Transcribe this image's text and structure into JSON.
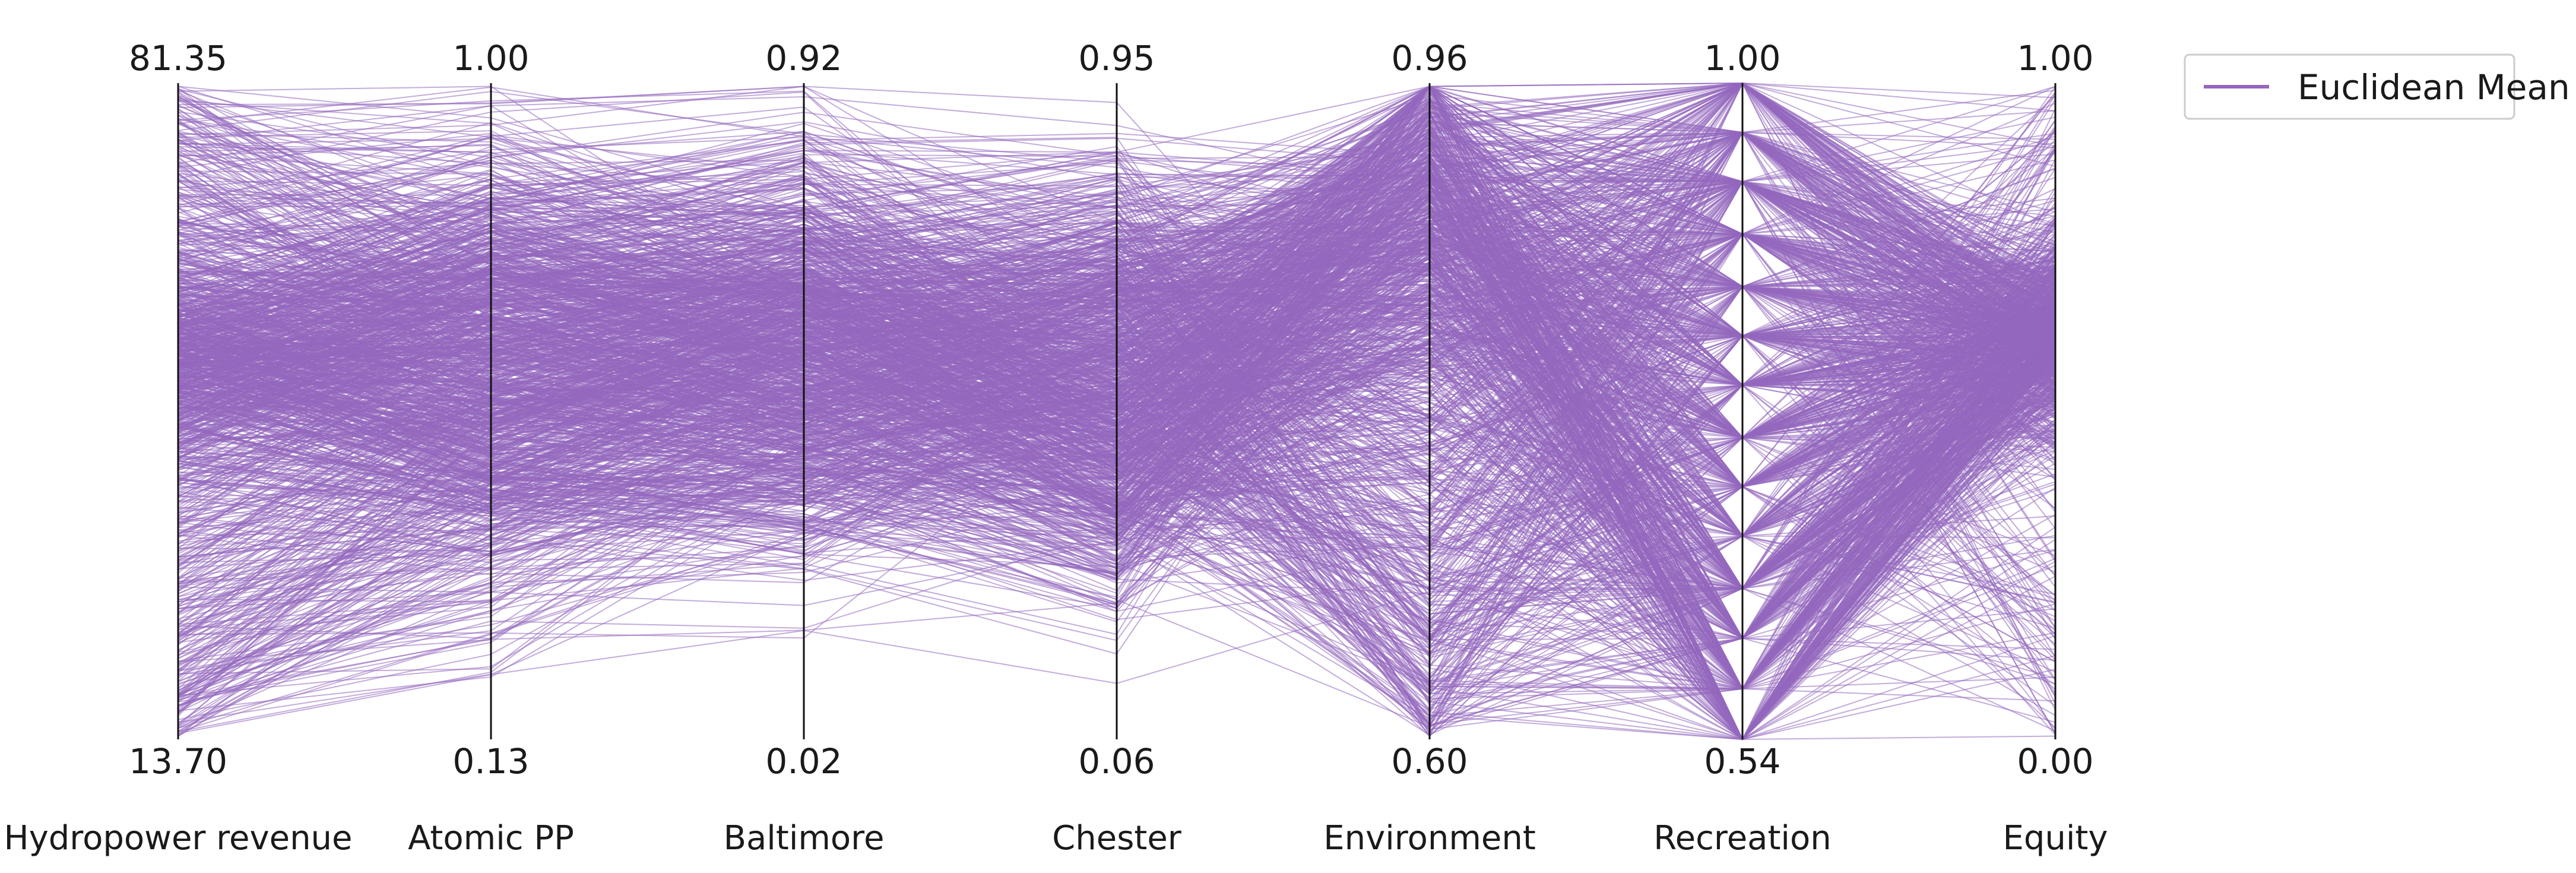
{
  "chart_data": {
    "type": "parallel_coordinates",
    "title": "",
    "axes": [
      {
        "name": "Hydropower revenue",
        "max": 81.35,
        "max_label": "81.35",
        "min": 13.7,
        "min_label": "13.70"
      },
      {
        "name": "Atomic PP",
        "max": 1.0,
        "max_label": "1.00",
        "min": 0.13,
        "min_label": "0.13"
      },
      {
        "name": "Baltimore",
        "max": 0.92,
        "max_label": "0.92",
        "min": 0.02,
        "min_label": "0.02"
      },
      {
        "name": "Chester",
        "max": 0.95,
        "max_label": "0.95",
        "min": 0.06,
        "min_label": "0.06"
      },
      {
        "name": "Environment",
        "max": 0.96,
        "max_label": "0.96",
        "min": 0.6,
        "min_label": "0.60"
      },
      {
        "name": "Recreation",
        "max": 1.0,
        "max_label": "1.00",
        "min": 0.54,
        "min_label": "0.54"
      },
      {
        "name": "Equity",
        "max": 1.0,
        "max_label": "1.00",
        "min": 0.0,
        "min_label": "0.00"
      }
    ],
    "series": [
      {
        "name": "Euclidean Mean",
        "color": "#9467bd",
        "line_count_estimate": 1200
      }
    ],
    "recreation_discrete_levels_fraction": [
      0.0,
      0.077,
      0.154,
      0.23,
      0.31,
      0.385,
      0.46,
      0.54,
      0.615,
      0.69,
      0.77,
      0.85,
      0.925,
      1.0
    ],
    "legend": {
      "label": "Euclidean Mean",
      "position": "top-right"
    },
    "grid": false
  }
}
